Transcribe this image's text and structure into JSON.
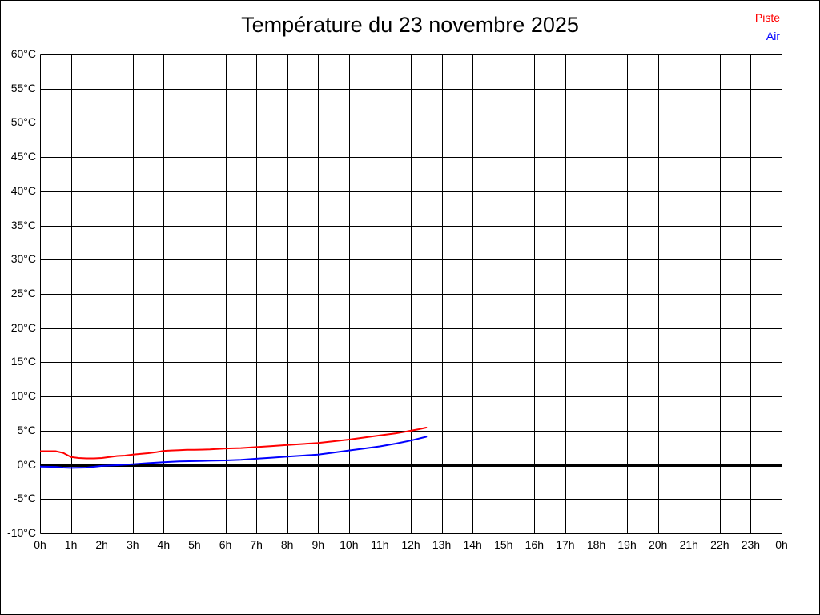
{
  "title": "Température du 23 novembre 2025",
  "legend": {
    "piste": {
      "label": "Piste",
      "color": "#ff0000"
    },
    "air": {
      "label": "Air",
      "color": "#0000ff"
    }
  },
  "chart_data": {
    "type": "line",
    "title": "Température du 23 novembre 2025",
    "xlabel": "",
    "ylabel": "",
    "x_axis": {
      "unit": "h",
      "min": 0,
      "max": 24,
      "tick_step": 1,
      "tick_labels": [
        "0h",
        "1h",
        "2h",
        "3h",
        "4h",
        "5h",
        "6h",
        "7h",
        "8h",
        "9h",
        "10h",
        "11h",
        "12h",
        "13h",
        "14h",
        "15h",
        "16h",
        "17h",
        "18h",
        "19h",
        "20h",
        "21h",
        "22h",
        "23h",
        "0h"
      ]
    },
    "y_axis": {
      "unit": "°C",
      "min": -10,
      "max": 60,
      "tick_step": 5,
      "tick_labels": [
        "60°C",
        "55°C",
        "50°C",
        "45°C",
        "40°C",
        "35°C",
        "30°C",
        "25°C",
        "20°C",
        "15°C",
        "10°C",
        "5°C",
        "0°C",
        "-5°C",
        "-10°C"
      ]
    },
    "grid": true,
    "grid_color": "#000000",
    "zero_line": {
      "value": 0,
      "color": "#000000",
      "width": 4
    },
    "legend_position": "top-right",
    "series": [
      {
        "name": "Piste",
        "color": "#ff0000",
        "points": [
          [
            0,
            2.0
          ],
          [
            0.25,
            2.0
          ],
          [
            0.5,
            2.0
          ],
          [
            0.75,
            1.75
          ],
          [
            1,
            1.15
          ],
          [
            1.25,
            1.0
          ],
          [
            1.5,
            0.95
          ],
          [
            1.75,
            0.95
          ],
          [
            2,
            1.0
          ],
          [
            2.25,
            1.15
          ],
          [
            2.5,
            1.3
          ],
          [
            2.75,
            1.35
          ],
          [
            3,
            1.5
          ],
          [
            3.25,
            1.6
          ],
          [
            3.5,
            1.7
          ],
          [
            3.75,
            1.85
          ],
          [
            4,
            2.05
          ],
          [
            4.25,
            2.1
          ],
          [
            4.5,
            2.15
          ],
          [
            4.75,
            2.2
          ],
          [
            5,
            2.2
          ],
          [
            5.5,
            2.25
          ],
          [
            6,
            2.4
          ],
          [
            6.5,
            2.45
          ],
          [
            7,
            2.6
          ],
          [
            7.5,
            2.75
          ],
          [
            8,
            2.9
          ],
          [
            8.5,
            3.05
          ],
          [
            9,
            3.2
          ],
          [
            9.5,
            3.45
          ],
          [
            10,
            3.7
          ],
          [
            10.5,
            4.0
          ],
          [
            11,
            4.3
          ],
          [
            11.5,
            4.6
          ],
          [
            12,
            5.0
          ],
          [
            12.25,
            5.2
          ],
          [
            12.5,
            5.45
          ]
        ]
      },
      {
        "name": "Air",
        "color": "#0000ff",
        "points": [
          [
            0,
            -0.25
          ],
          [
            0.5,
            -0.3
          ],
          [
            0.75,
            -0.4
          ],
          [
            1,
            -0.45
          ],
          [
            1.5,
            -0.4
          ],
          [
            2,
            -0.15
          ],
          [
            2.5,
            -0.05
          ],
          [
            3,
            0.1
          ],
          [
            3.5,
            0.25
          ],
          [
            4,
            0.4
          ],
          [
            4.5,
            0.5
          ],
          [
            5,
            0.55
          ],
          [
            5.5,
            0.6
          ],
          [
            6,
            0.65
          ],
          [
            6.5,
            0.75
          ],
          [
            7,
            0.9
          ],
          [
            7.5,
            1.05
          ],
          [
            8,
            1.2
          ],
          [
            8.5,
            1.35
          ],
          [
            9,
            1.5
          ],
          [
            9.5,
            1.8
          ],
          [
            10,
            2.1
          ],
          [
            10.5,
            2.4
          ],
          [
            11,
            2.7
          ],
          [
            11.5,
            3.1
          ],
          [
            12,
            3.55
          ],
          [
            12.5,
            4.1
          ]
        ]
      }
    ]
  }
}
